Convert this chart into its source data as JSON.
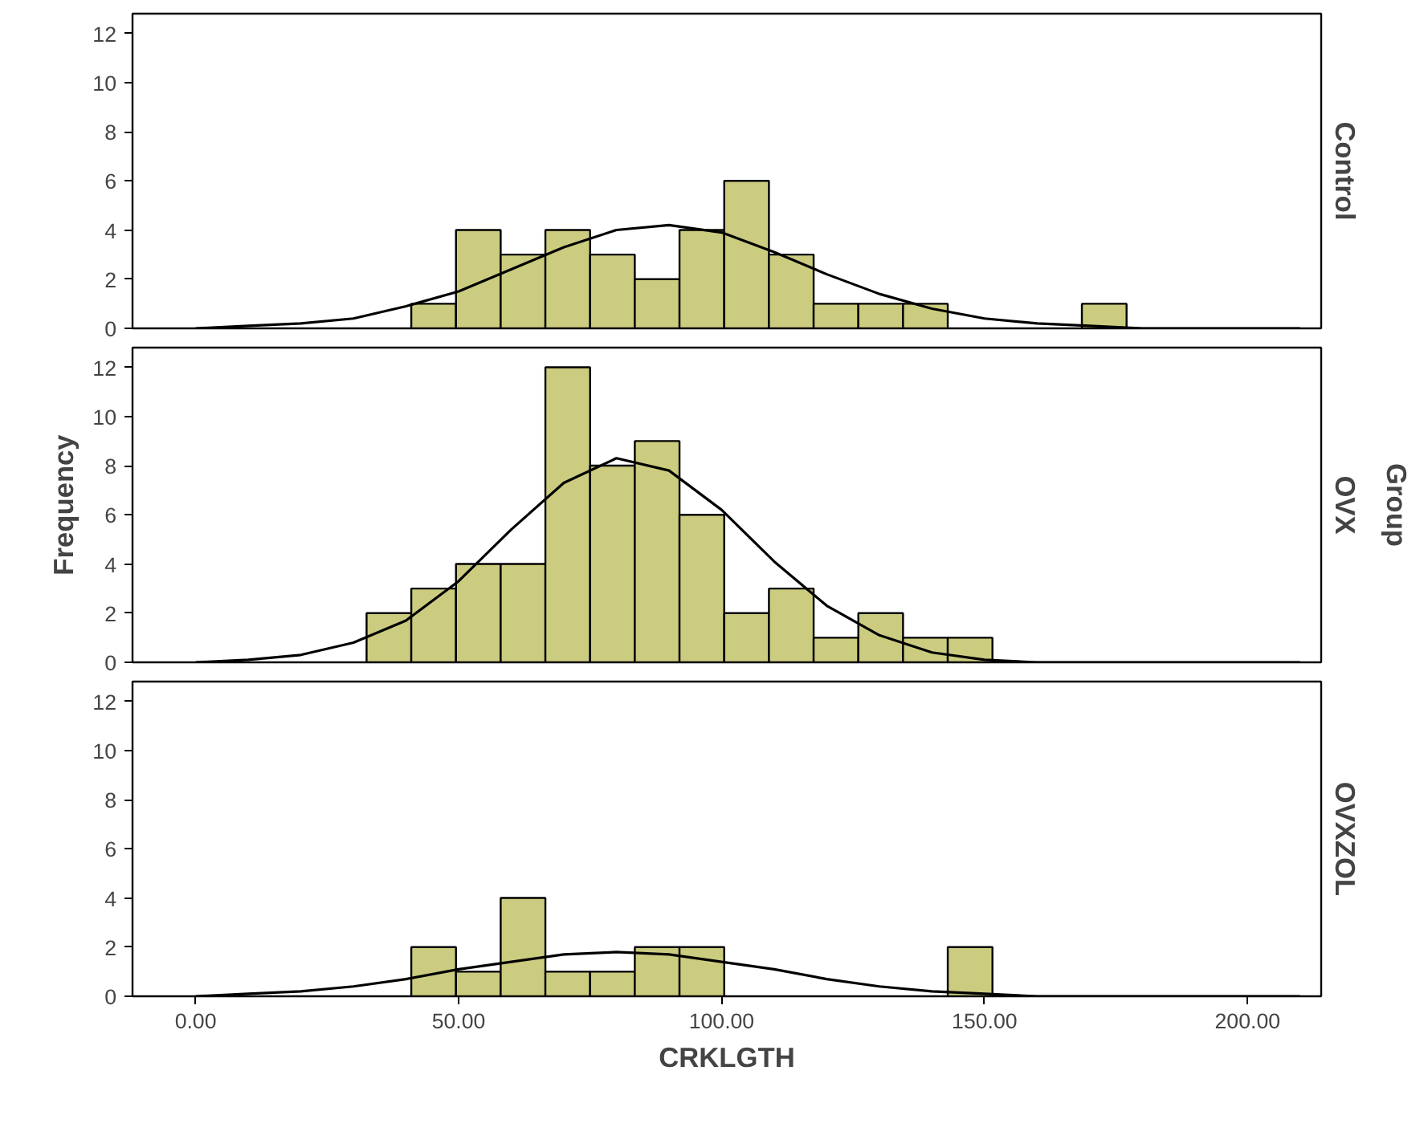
{
  "chart_data": [
    {
      "type": "histogram",
      "title": "Control",
      "xlim": [
        -12,
        214
      ],
      "ylim": [
        0,
        12.8
      ],
      "yticks": [
        0,
        2,
        4,
        6,
        8,
        10,
        12
      ],
      "tick_labels": "y",
      "grid": false,
      "series": [
        {
          "color": "#cccc80",
          "bins": [
            41,
            49.5,
            58,
            66.5,
            75,
            83.5,
            92,
            100.5,
            109,
            117.5,
            126,
            134.5,
            143,
            151.5,
            160,
            168.5,
            177
          ],
          "values": [
            1,
            4,
            3,
            4,
            3,
            2,
            4,
            6,
            3,
            1,
            1,
            1,
            0,
            0,
            0,
            1
          ]
        },
        {
          "type": "line",
          "color": "#000000",
          "x": [
            0,
            10,
            20,
            30,
            40,
            50,
            60,
            70,
            80,
            90,
            100,
            110,
            120,
            130,
            140,
            150,
            160,
            170,
            180,
            190,
            200,
            210
          ],
          "values": [
            0.0,
            0.1,
            0.2,
            0.4,
            0.9,
            1.5,
            2.4,
            3.3,
            4.0,
            4.2,
            3.9,
            3.1,
            2.2,
            1.4,
            0.8,
            0.4,
            0.2,
            0.1,
            0.0,
            0.0,
            0.0,
            0.0
          ]
        }
      ]
    },
    {
      "type": "histogram",
      "title": "OVX",
      "y2label": "Group",
      "ylabel": "Frequency",
      "xlim": [
        -12,
        214
      ],
      "ylim": [
        0,
        12.8
      ],
      "yticks": [
        0,
        2,
        4,
        6,
        8,
        10,
        12
      ],
      "tick_labels": "y",
      "grid": false,
      "series": [
        {
          "color": "#cccc80",
          "bins": [
            32.5,
            41,
            49.5,
            58,
            66.5,
            75,
            83.5,
            92,
            100.5,
            109,
            117.5,
            126,
            134.5,
            143,
            151.5
          ],
          "values": [
            2,
            3,
            4,
            4,
            12,
            8,
            9,
            6,
            2,
            3,
            1,
            2,
            1,
            1
          ]
        },
        {
          "type": "line",
          "color": "#000000",
          "x": [
            0,
            10,
            20,
            30,
            40,
            50,
            60,
            70,
            80,
            90,
            100,
            110,
            120,
            130,
            140,
            150,
            160,
            170,
            180,
            190,
            200,
            210
          ],
          "values": [
            0.0,
            0.1,
            0.3,
            0.8,
            1.7,
            3.3,
            5.4,
            7.3,
            8.3,
            7.8,
            6.2,
            4.1,
            2.3,
            1.1,
            0.4,
            0.1,
            0.0,
            0.0,
            0.0,
            0.0,
            0.0,
            0.0
          ]
        }
      ]
    },
    {
      "type": "histogram",
      "title": "OVXZOL",
      "xlabel": "CRKLGTH",
      "xlim": [
        -12,
        214
      ],
      "ylim": [
        0,
        12.8
      ],
      "yticks": [
        0,
        2,
        4,
        6,
        8,
        10,
        12
      ],
      "xticks": [
        {
          "value": 0,
          "label": "0.00"
        },
        {
          "value": 50,
          "label": "50.00"
        },
        {
          "value": 100,
          "label": "100.00"
        },
        {
          "value": 150,
          "label": "150.00"
        },
        {
          "value": 200,
          "label": "200.00"
        }
      ],
      "grid": false,
      "series": [
        {
          "color": "#cccc80",
          "bins": [
            41,
            49.5,
            58,
            66.5,
            75,
            83.5,
            92,
            100.5,
            109,
            117.5,
            126,
            134.5,
            143,
            151.5
          ],
          "values": [
            2,
            1,
            4,
            1,
            1,
            2,
            2,
            0,
            0,
            0,
            0,
            0,
            2
          ]
        },
        {
          "type": "line",
          "color": "#000000",
          "x": [
            0,
            10,
            20,
            30,
            40,
            50,
            60,
            70,
            80,
            90,
            100,
            110,
            120,
            130,
            140,
            150,
            160,
            170,
            180,
            190,
            200,
            210
          ],
          "values": [
            0.0,
            0.1,
            0.2,
            0.4,
            0.7,
            1.1,
            1.4,
            1.7,
            1.8,
            1.7,
            1.4,
            1.1,
            0.7,
            0.4,
            0.2,
            0.1,
            0.0,
            0.0,
            0.0,
            0.0,
            0.0,
            0.0
          ]
        }
      ]
    }
  ]
}
